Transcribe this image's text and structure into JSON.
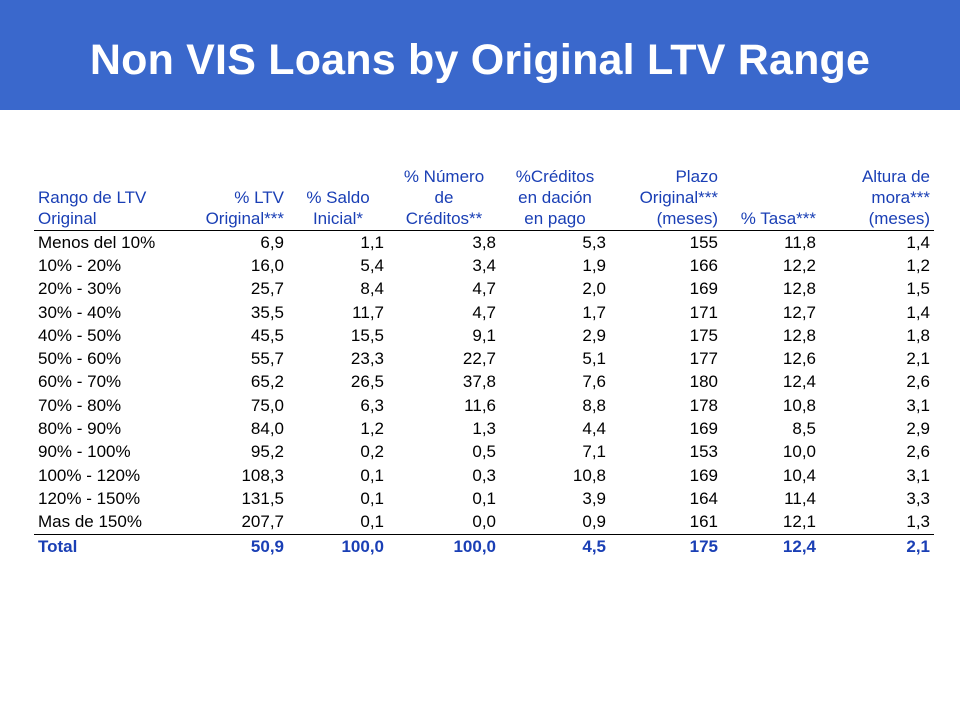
{
  "title": "Non VIS Loans by Original LTV Range",
  "colors": {
    "title_bar": "#3a68cc",
    "header_text": "#1a3fb5"
  },
  "table": {
    "headers": [
      [
        "Rango de LTV",
        "Original"
      ],
      [
        "% LTV",
        "Original***"
      ],
      [
        "% Saldo",
        "Inicial*"
      ],
      [
        "% Número",
        "de",
        "Créditos**"
      ],
      [
        "%Créditos",
        "en dación",
        "en pago"
      ],
      [
        "Plazo",
        "Original***",
        "(meses)"
      ],
      [
        "% Tasa***"
      ],
      [
        "Altura de",
        "mora***",
        "(meses)"
      ]
    ],
    "rows": [
      [
        "Menos del 10%",
        "6,9",
        "1,1",
        "3,8",
        "5,3",
        "155",
        "11,8",
        "1,4"
      ],
      [
        "10% - 20%",
        "16,0",
        "5,4",
        "3,4",
        "1,9",
        "166",
        "12,2",
        "1,2"
      ],
      [
        "20% - 30%",
        "25,7",
        "8,4",
        "4,7",
        "2,0",
        "169",
        "12,8",
        "1,5"
      ],
      [
        "30% - 40%",
        "35,5",
        "11,7",
        "4,7",
        "1,7",
        "171",
        "12,7",
        "1,4"
      ],
      [
        "40% - 50%",
        "45,5",
        "15,5",
        "9,1",
        "2,9",
        "175",
        "12,8",
        "1,8"
      ],
      [
        "50% - 60%",
        "55,7",
        "23,3",
        "22,7",
        "5,1",
        "177",
        "12,6",
        "2,1"
      ],
      [
        "60% - 70%",
        "65,2",
        "26,5",
        "37,8",
        "7,6",
        "180",
        "12,4",
        "2,6"
      ],
      [
        "70% - 80%",
        "75,0",
        "6,3",
        "11,6",
        "8,8",
        "178",
        "10,8",
        "3,1"
      ],
      [
        "80% - 90%",
        "84,0",
        "1,2",
        "1,3",
        "4,4",
        "169",
        "8,5",
        "2,9"
      ],
      [
        "90% - 100%",
        "95,2",
        "0,2",
        "0,5",
        "7,1",
        "153",
        "10,0",
        "2,6"
      ],
      [
        "100% - 120%",
        "108,3",
        "0,1",
        "0,3",
        "10,8",
        "169",
        "10,4",
        "3,1"
      ],
      [
        "120% - 150%",
        "131,5",
        "0,1",
        "0,1",
        "3,9",
        "164",
        "11,4",
        "3,3"
      ],
      [
        "Mas de 150%",
        "207,7",
        "0,1",
        "0,0",
        "0,9",
        "161",
        "12,1",
        "1,3"
      ]
    ],
    "total": [
      "Total",
      "50,9",
      "100,0",
      "100,0",
      "4,5",
      "175",
      "12,4",
      "2,1"
    ]
  }
}
